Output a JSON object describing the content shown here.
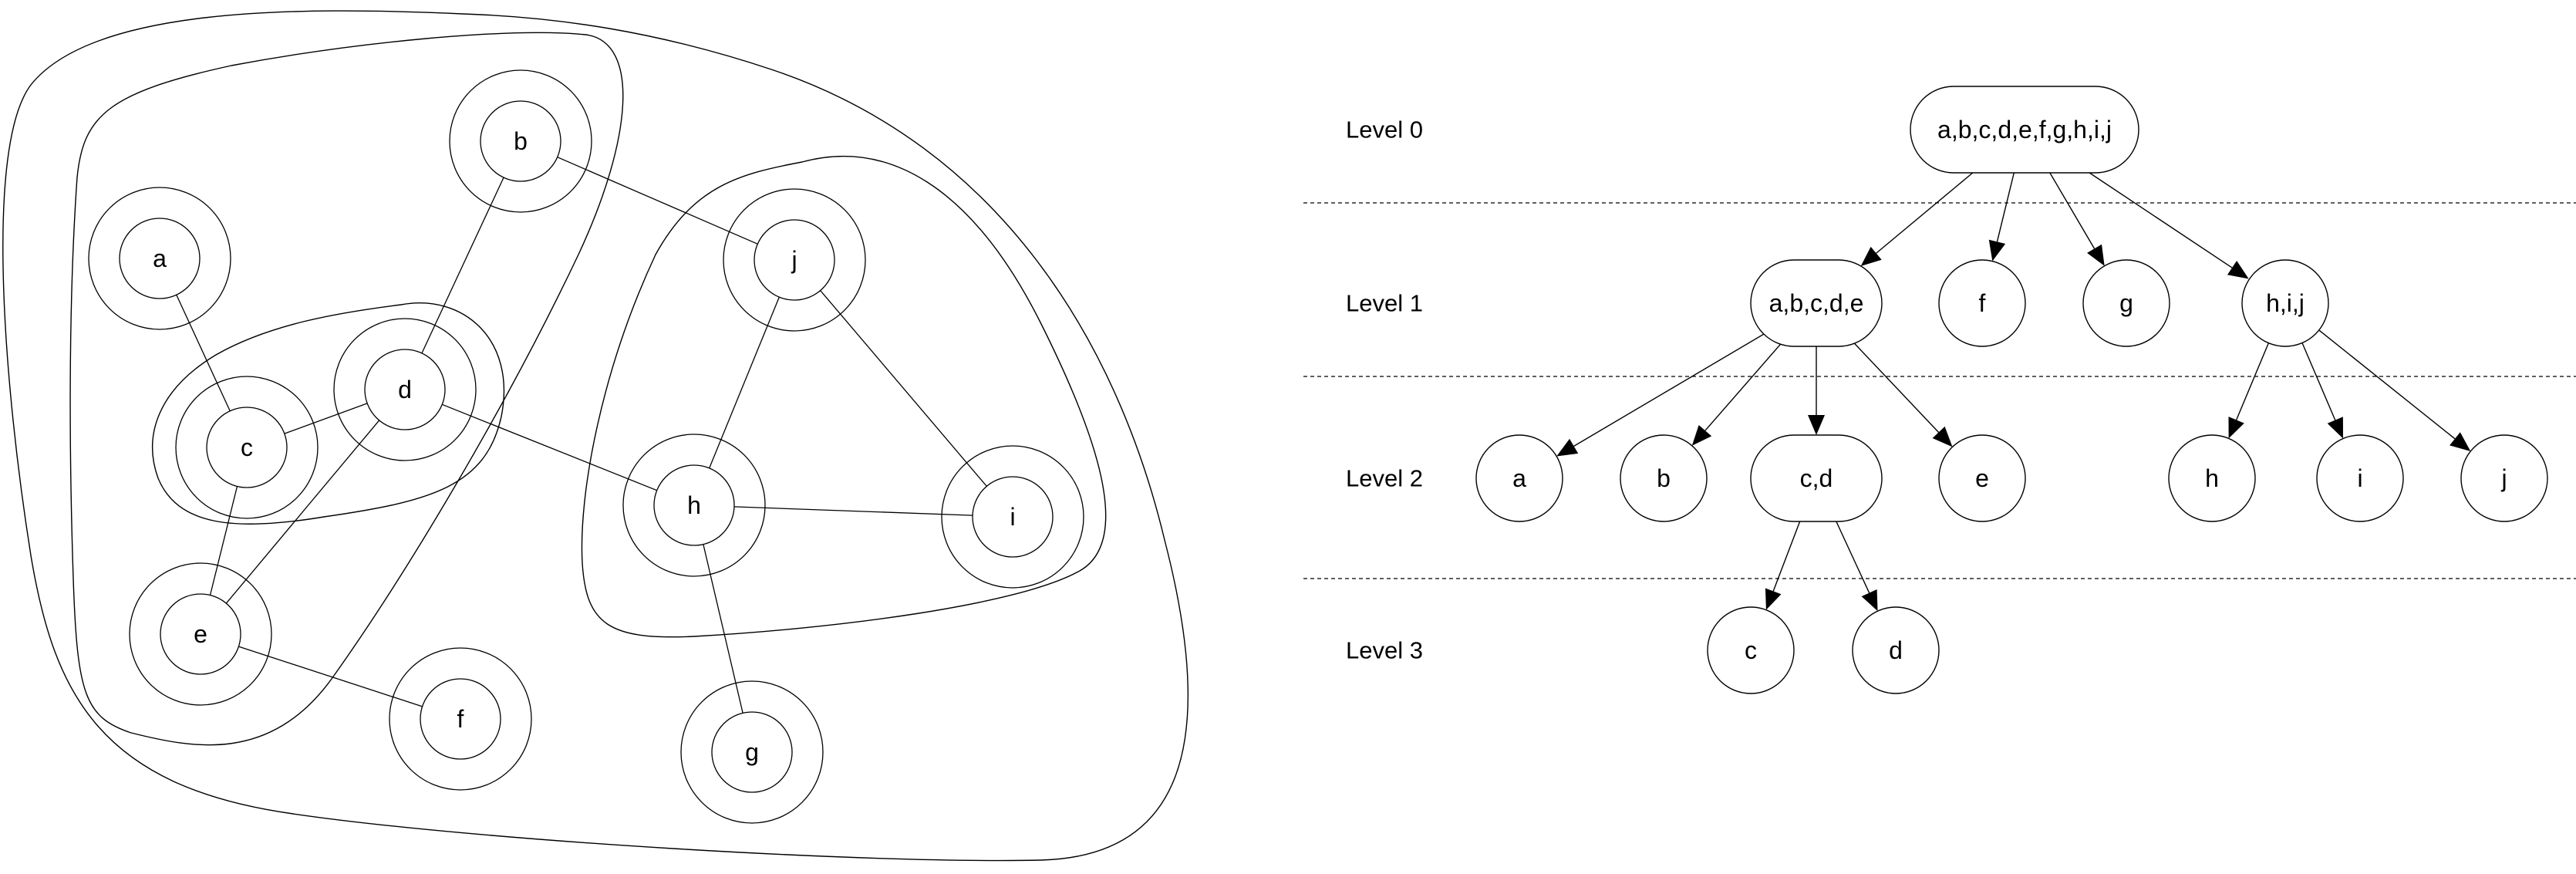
{
  "graph": {
    "nodes": [
      "a",
      "b",
      "c",
      "d",
      "e",
      "f",
      "g",
      "h",
      "i",
      "j"
    ],
    "edges": [
      [
        "a",
        "c"
      ],
      [
        "b",
        "d"
      ],
      [
        "b",
        "j"
      ],
      [
        "c",
        "d"
      ],
      [
        "c",
        "e"
      ],
      [
        "d",
        "e"
      ],
      [
        "d",
        "h"
      ],
      [
        "e",
        "f"
      ],
      [
        "j",
        "h"
      ],
      [
        "j",
        "i"
      ],
      [
        "h",
        "i"
      ],
      [
        "h",
        "g"
      ]
    ]
  },
  "tree": {
    "levels": [
      "Level 0",
      "Level 1",
      "Level 2",
      "Level 3"
    ],
    "nodes": [
      {
        "id": "root",
        "label": "a,b,c,d,e,f,g,h,i,j"
      },
      {
        "id": "abcde",
        "label": "a,b,c,d,e"
      },
      {
        "id": "f",
        "label": "f"
      },
      {
        "id": "g",
        "label": "g"
      },
      {
        "id": "hij",
        "label": "h,i,j"
      },
      {
        "id": "a",
        "label": "a"
      },
      {
        "id": "b",
        "label": "b"
      },
      {
        "id": "cd",
        "label": "c,d"
      },
      {
        "id": "e",
        "label": "e"
      },
      {
        "id": "h",
        "label": "h"
      },
      {
        "id": "i",
        "label": "i"
      },
      {
        "id": "j",
        "label": "j"
      },
      {
        "id": "c",
        "label": "c"
      },
      {
        "id": "d",
        "label": "d"
      }
    ],
    "edges": [
      [
        "root",
        "abcde"
      ],
      [
        "root",
        "f"
      ],
      [
        "root",
        "g"
      ],
      [
        "root",
        "hij"
      ],
      [
        "abcde",
        "a"
      ],
      [
        "abcde",
        "b"
      ],
      [
        "abcde",
        "cd"
      ],
      [
        "abcde",
        "e"
      ],
      [
        "hij",
        "h"
      ],
      [
        "hij",
        "i"
      ],
      [
        "hij",
        "j"
      ],
      [
        "cd",
        "c"
      ],
      [
        "cd",
        "d"
      ]
    ]
  }
}
